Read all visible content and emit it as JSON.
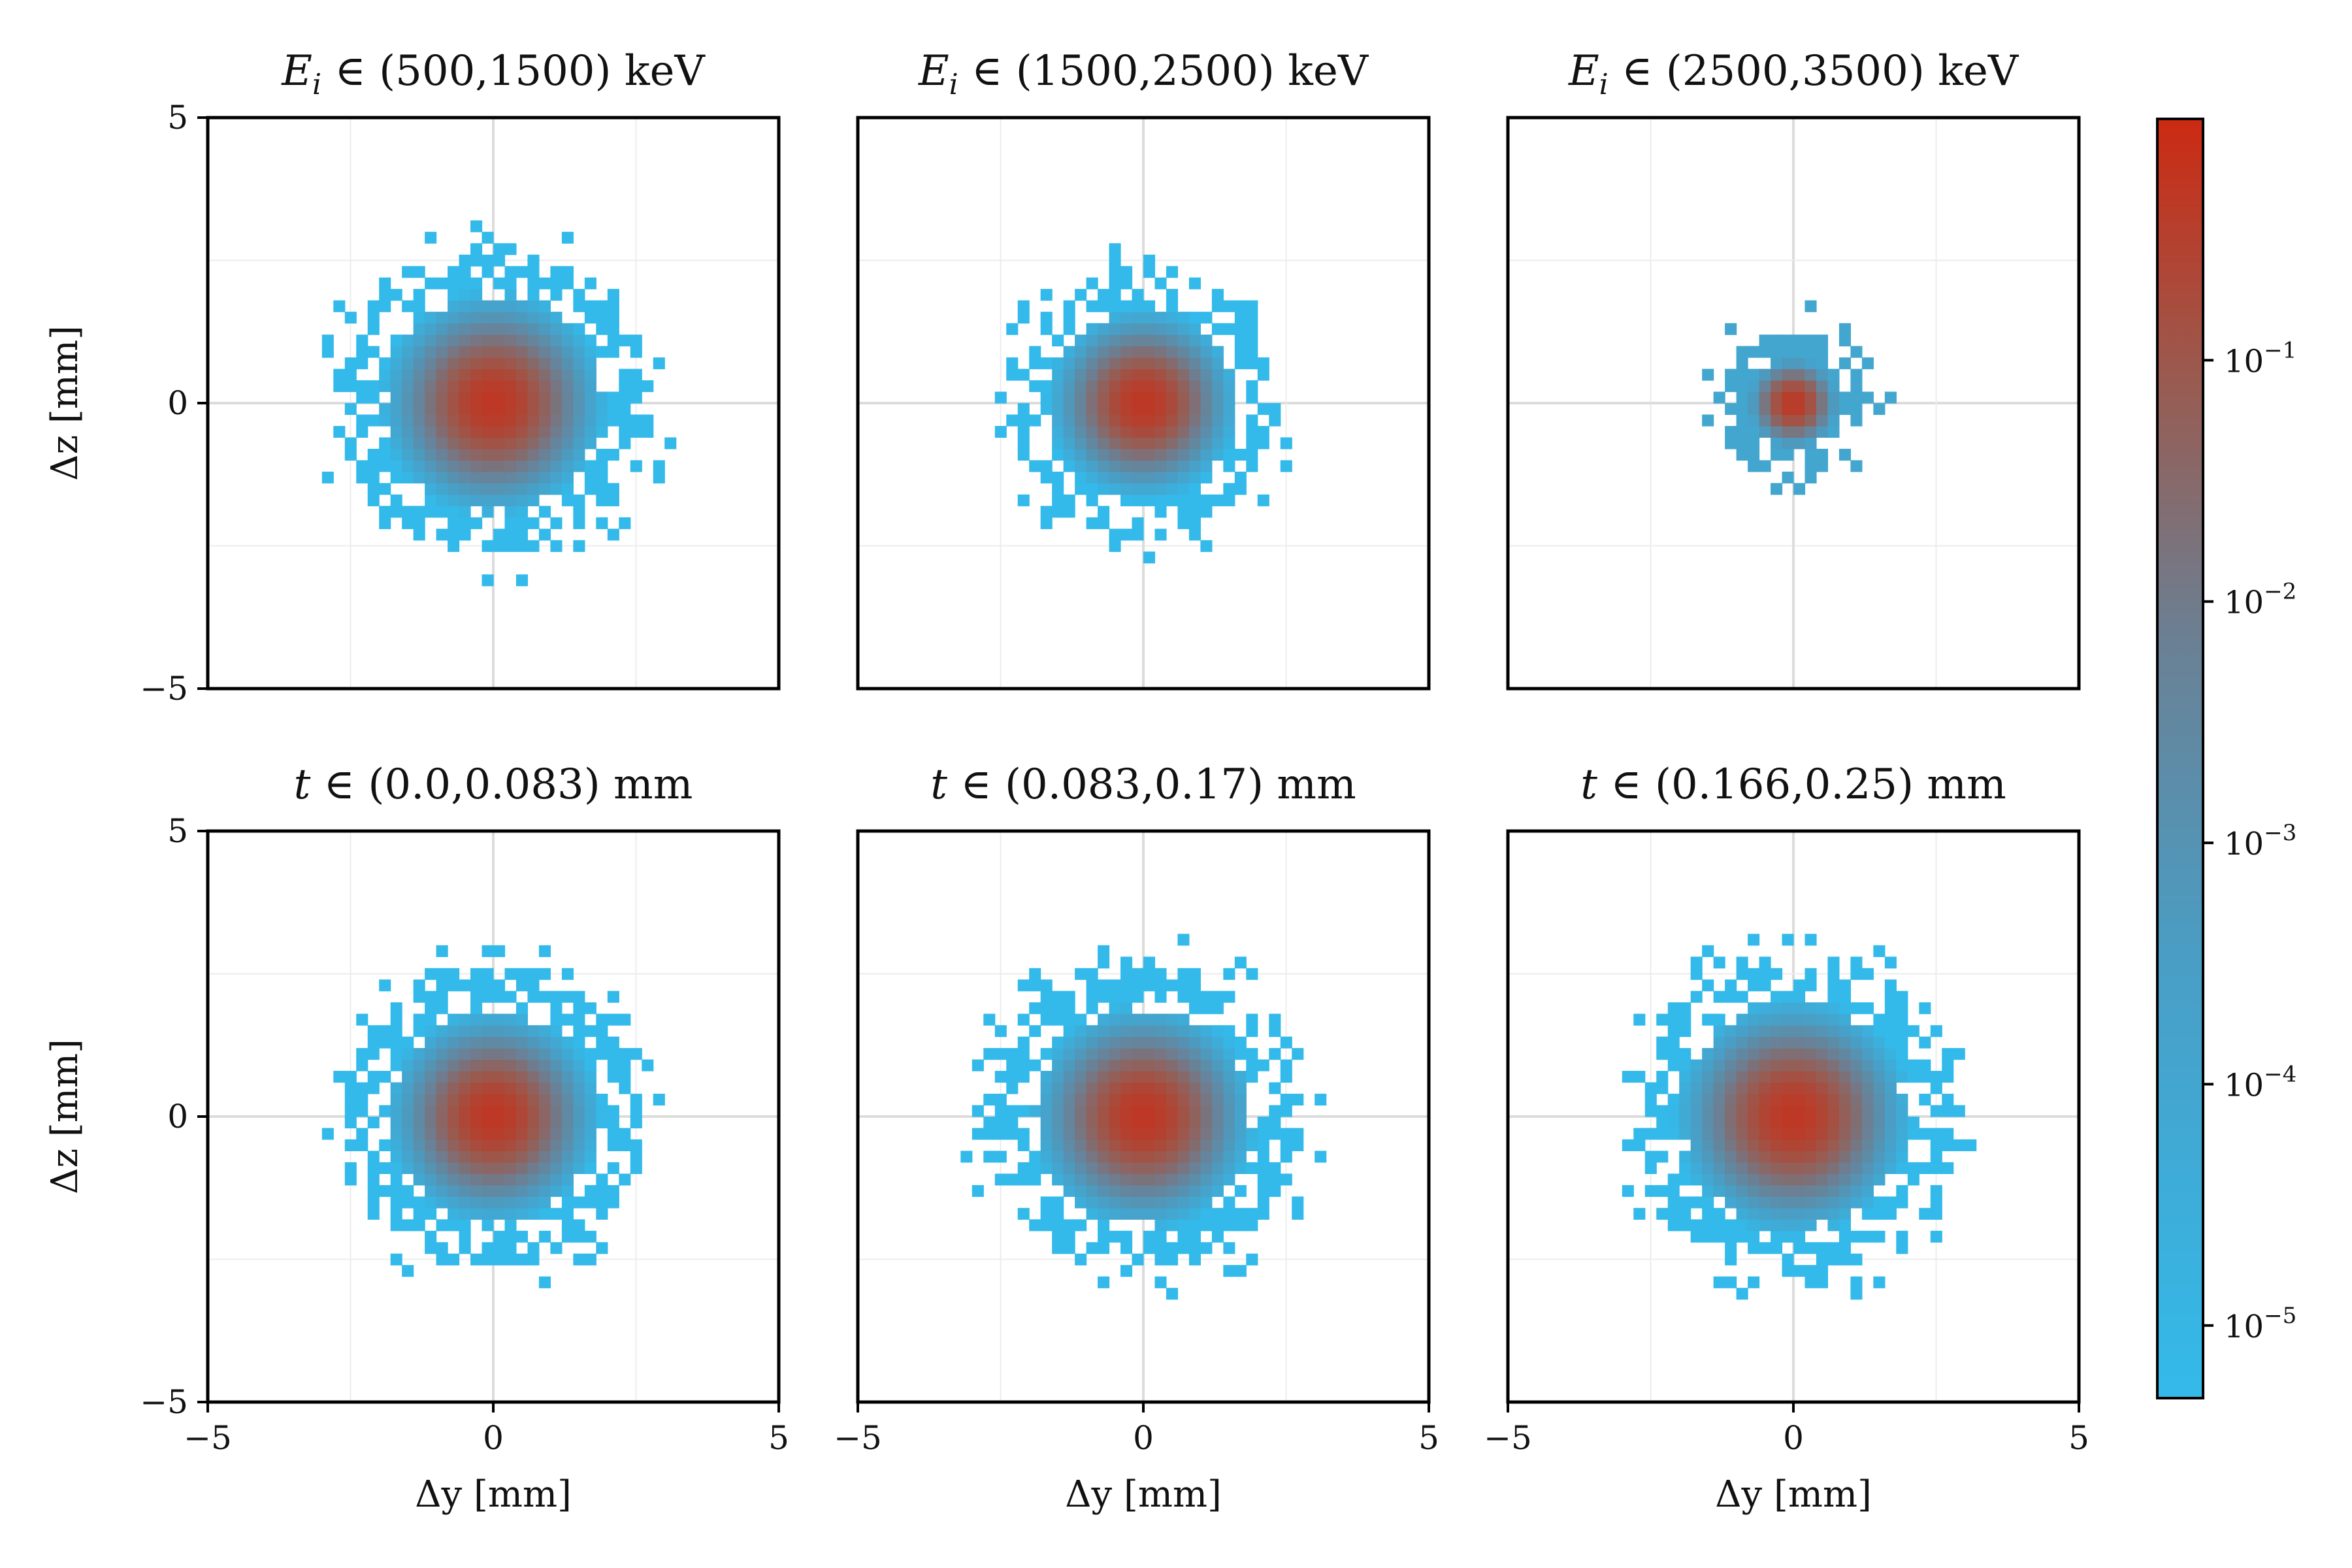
{
  "colors": {
    "low": "#33baea",
    "high": "#cc2a12",
    "grid": "#e4e4e4",
    "axis": "#000000"
  },
  "colorbar": {
    "label": "",
    "scale": "log",
    "range": [
      5e-06,
      1.0
    ],
    "ticks": [
      {
        "value": 0.1,
        "base": "10",
        "exp": "−1"
      },
      {
        "value": 0.01,
        "base": "10",
        "exp": "−2"
      },
      {
        "value": 0.001,
        "base": "10",
        "exp": "−3"
      },
      {
        "value": 0.0001,
        "base": "10",
        "exp": "−4"
      },
      {
        "value": 1e-05,
        "base": "10",
        "exp": "−5"
      }
    ]
  },
  "chart_data": [
    {
      "type": "heatmap",
      "title": "E_i ∈ (500,1500) keV",
      "title_var": "E",
      "title_sub": "i",
      "title_rest": " ∈ (500,1500) keV",
      "xlabel": "",
      "ylabel": "Δz [mm]",
      "xlim": [
        -5,
        5
      ],
      "ylim": [
        -5,
        5
      ],
      "xticks": [],
      "yticks": [
        "5",
        "0",
        "−5"
      ],
      "grid": true,
      "bin_size_mm": 0.2,
      "peak": 0.5,
      "sigma_mm": 1.0,
      "support_radius_mm": 2.6,
      "floor": 5e-06,
      "seed": 11
    },
    {
      "type": "heatmap",
      "title": "E_i ∈ (1500,2500) keV",
      "title_var": "E",
      "title_sub": "i",
      "title_rest": " ∈ (1500,2500) keV",
      "xlabel": "",
      "ylabel": "",
      "xlim": [
        -5,
        5
      ],
      "ylim": [
        -5,
        5
      ],
      "xticks": [],
      "yticks": [],
      "grid": true,
      "bin_size_mm": 0.2,
      "peak": 0.5,
      "sigma_mm": 0.85,
      "support_radius_mm": 2.2,
      "floor": 5e-06,
      "seed": 23
    },
    {
      "type": "heatmap",
      "title": "E_i ∈ (2500,3500) keV",
      "title_var": "E",
      "title_sub": "i",
      "title_rest": " ∈ (2500,3500) keV",
      "xlabel": "",
      "ylabel": "",
      "xlim": [
        -5,
        5
      ],
      "ylim": [
        -5,
        5
      ],
      "xticks": [],
      "yticks": [],
      "grid": true,
      "bin_size_mm": 0.2,
      "peak": 0.5,
      "sigma_mm": 0.45,
      "support_radius_mm": 1.15,
      "floor": 0.0001,
      "seed": 37
    },
    {
      "type": "heatmap",
      "title": "t ∈ (0.0,0.083) mm",
      "title_var": "t",
      "title_sub": "",
      "title_rest": " ∈ (0.0,0.083) mm",
      "xlabel": "Δy [mm]",
      "ylabel": "Δz [mm]",
      "xlim": [
        -5,
        5
      ],
      "ylim": [
        -5,
        5
      ],
      "xticks": [
        "−5",
        "0",
        "5"
      ],
      "yticks": [
        "5",
        "0",
        "−5"
      ],
      "grid": true,
      "bin_size_mm": 0.2,
      "peak": 0.5,
      "sigma_mm": 0.95,
      "support_radius_mm": 2.5,
      "floor": 5e-06,
      "seed": 41
    },
    {
      "type": "heatmap",
      "title": "t ∈ (0.083,0.17) mm",
      "title_var": "t",
      "title_sub": "",
      "title_rest": " ∈ (0.083,0.17) mm",
      "xlabel": "Δy [mm]",
      "ylabel": "",
      "xlim": [
        -5,
        5
      ],
      "ylim": [
        -5,
        5
      ],
      "xticks": [
        "−5",
        "0",
        "5"
      ],
      "yticks": [],
      "grid": true,
      "bin_size_mm": 0.2,
      "peak": 0.5,
      "sigma_mm": 1.0,
      "support_radius_mm": 2.6,
      "floor": 5e-06,
      "seed": 53
    },
    {
      "type": "heatmap",
      "title": "t ∈ (0.166,0.25) mm",
      "title_var": "t",
      "title_sub": "",
      "title_rest": " ∈ (0.166,0.25) mm",
      "xlabel": "Δy [mm]",
      "ylabel": "",
      "xlim": [
        -5,
        5
      ],
      "ylim": [
        -5,
        5
      ],
      "xticks": [
        "−5",
        "0",
        "5"
      ],
      "yticks": [],
      "grid": true,
      "bin_size_mm": 0.2,
      "peak": 0.5,
      "sigma_mm": 1.05,
      "support_radius_mm": 2.7,
      "floor": 5e-06,
      "seed": 67
    }
  ]
}
